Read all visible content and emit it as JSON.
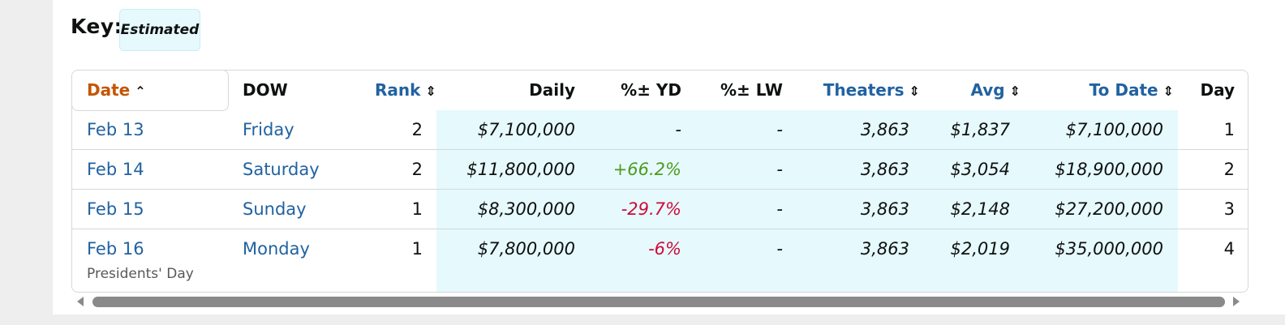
{
  "key": {
    "label": "Key:",
    "badge": "Estimated"
  },
  "table": {
    "headers": {
      "date": "Date",
      "dow": "DOW",
      "rank": "Rank",
      "daily": "Daily",
      "yd": "%± YD",
      "lw": "%± LW",
      "theaters": "Theaters",
      "avg": "Avg",
      "to_date": "To Date",
      "day": "Day"
    },
    "sort_icons": {
      "date": "chevron-up-icon",
      "sortable": "sort-updown-icon"
    },
    "rows": [
      {
        "date": "Feb 13",
        "dow": "Friday",
        "rank": "2",
        "daily": "$7,100,000",
        "yd": "-",
        "lw": "-",
        "theaters": "3,863",
        "avg": "$1,837",
        "to_date": "$7,100,000",
        "day": "1",
        "note": ""
      },
      {
        "date": "Feb 14",
        "dow": "Saturday",
        "rank": "2",
        "daily": "$11,800,000",
        "yd": "+66.2%",
        "lw": "-",
        "theaters": "3,863",
        "avg": "$3,054",
        "to_date": "$18,900,000",
        "day": "2",
        "note": ""
      },
      {
        "date": "Feb 15",
        "dow": "Sunday",
        "rank": "1",
        "daily": "$8,300,000",
        "yd": "-29.7%",
        "lw": "-",
        "theaters": "3,863",
        "avg": "$2,148",
        "to_date": "$27,200,000",
        "day": "3",
        "note": ""
      },
      {
        "date": "Feb 16",
        "dow": "Monday",
        "rank": "1",
        "daily": "$7,800,000",
        "yd": "-6%",
        "lw": "-",
        "theaters": "3,863",
        "avg": "$2,019",
        "to_date": "$35,000,000",
        "day": "4",
        "note": "Presidents' Day"
      }
    ]
  },
  "colors": {
    "link": "#2162a1",
    "active_sort": "#c45500",
    "positive": "#4c9b1f",
    "negative": "#cc0c39",
    "estimated_shade": "#e6f9fc"
  }
}
